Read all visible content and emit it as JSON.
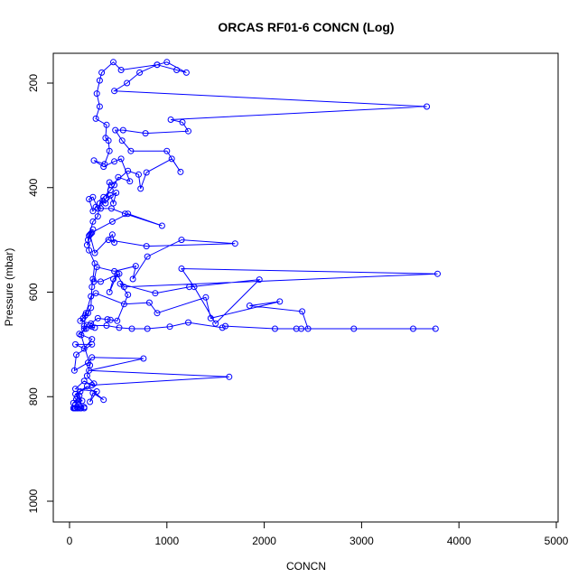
{
  "chart_data": {
    "type": "scatter",
    "title": "ORCAS RF01-6 CONCN (Log)",
    "xlabel": "CONCN",
    "ylabel": "Pressure (mbar)",
    "xlim": [
      0,
      5000
    ],
    "ylim": [
      1030,
      150
    ],
    "y_reversed": true,
    "x_ticks": [
      0,
      1000,
      2000,
      3000,
      4000,
      5000
    ],
    "y_ticks": [
      200,
      400,
      600,
      800,
      1000
    ],
    "x_tick_labels": [
      "0",
      "1000",
      "2000",
      "3000",
      "4000",
      "5000"
    ],
    "y_tick_labels": [
      "200",
      "400",
      "600",
      "800",
      "1000"
    ],
    "grid": false,
    "legend": "none",
    "color": "#0000ff",
    "markers": "open circles connected by lines",
    "series": [
      {
        "points": [
          [
            90,
            822
          ],
          [
            60,
            822
          ],
          [
            50,
            822
          ],
          [
            120,
            822
          ],
          [
            150,
            822
          ],
          [
            80,
            822
          ],
          [
            40,
            822
          ],
          [
            110,
            822
          ],
          [
            60,
            815
          ],
          [
            90,
            810
          ],
          [
            150,
            820
          ],
          [
            70,
            805
          ],
          [
            100,
            798
          ],
          [
            40,
            812
          ],
          [
            130,
            808
          ],
          [
            60,
            795
          ],
          [
            180,
            780
          ],
          [
            350,
            806
          ],
          [
            240,
            793
          ],
          [
            210,
            810
          ],
          [
            280,
            790
          ],
          [
            60,
            785
          ],
          [
            150,
            770
          ],
          [
            230,
            778
          ],
          [
            1640,
            762
          ],
          [
            200,
            750
          ],
          [
            760,
            727
          ],
          [
            230,
            725
          ],
          [
            190,
            735
          ],
          [
            50,
            750
          ],
          [
            70,
            720
          ],
          [
            230,
            700
          ],
          [
            60,
            700
          ],
          [
            150,
            708
          ],
          [
            230,
            690
          ],
          [
            100,
            680
          ],
          [
            170,
            670
          ],
          [
            150,
            665
          ],
          [
            260,
            668
          ],
          [
            230,
            666
          ],
          [
            210,
            664
          ],
          [
            380,
            664
          ],
          [
            510,
            668
          ],
          [
            640,
            670
          ],
          [
            800,
            670
          ],
          [
            1030,
            666
          ],
          [
            1220,
            658
          ],
          [
            1570,
            668
          ],
          [
            1600,
            665
          ],
          [
            2110,
            670
          ],
          [
            2330,
            670
          ],
          [
            2380,
            670
          ],
          [
            2920,
            670
          ],
          [
            3530,
            670
          ],
          [
            3760,
            670
          ],
          [
            2450,
            670
          ],
          [
            2390,
            637
          ],
          [
            1850,
            626
          ],
          [
            2160,
            618
          ],
          [
            1450,
            650
          ],
          [
            1400,
            610
          ],
          [
            900,
            640
          ],
          [
            820,
            620
          ],
          [
            560,
            623
          ],
          [
            270,
            602
          ],
          [
            220,
            608
          ],
          [
            170,
            640
          ],
          [
            140,
            650
          ],
          [
            110,
            655
          ],
          [
            220,
            660
          ],
          [
            290,
            650
          ],
          [
            420,
            653
          ],
          [
            390,
            652
          ],
          [
            490,
            655
          ],
          [
            600,
            605
          ],
          [
            520,
            584
          ],
          [
            880,
            602
          ],
          [
            1230,
            590
          ],
          [
            1950,
            576
          ],
          [
            1500,
            660
          ],
          [
            1280,
            590
          ],
          [
            1150,
            555
          ],
          [
            3780,
            565
          ],
          [
            560,
            590
          ],
          [
            490,
            566
          ],
          [
            410,
            600
          ],
          [
            450,
            575
          ],
          [
            510,
            565
          ],
          [
            320,
            580
          ],
          [
            250,
            580
          ],
          [
            280,
            552
          ],
          [
            460,
            560
          ],
          [
            680,
            550
          ],
          [
            650,
            575
          ],
          [
            800,
            532
          ],
          [
            1150,
            500
          ],
          [
            1700,
            507
          ],
          [
            790,
            512
          ],
          [
            400,
            500
          ],
          [
            460,
            505
          ],
          [
            440,
            490
          ],
          [
            260,
            525
          ],
          [
            210,
            490
          ],
          [
            180,
            510
          ],
          [
            220,
            488
          ],
          [
            240,
            480
          ],
          [
            200,
            492
          ],
          [
            230,
            486
          ],
          [
            440,
            465
          ],
          [
            600,
            450
          ],
          [
            950,
            473
          ],
          [
            570,
            450
          ],
          [
            430,
            440
          ],
          [
            320,
            440
          ],
          [
            270,
            437
          ],
          [
            240,
            445
          ],
          [
            200,
            422
          ],
          [
            240,
            418
          ],
          [
            290,
            440
          ],
          [
            340,
            425
          ],
          [
            370,
            430
          ],
          [
            420,
            415
          ],
          [
            450,
            430
          ],
          [
            480,
            410
          ],
          [
            380,
            420
          ],
          [
            410,
            390
          ],
          [
            430,
            395
          ],
          [
            600,
            368
          ],
          [
            710,
            375
          ],
          [
            730,
            402
          ],
          [
            790,
            371
          ],
          [
            1050,
            345
          ],
          [
            1140,
            370
          ],
          [
            1000,
            330
          ],
          [
            630,
            330
          ],
          [
            540,
            310
          ],
          [
            470,
            290
          ],
          [
            550,
            290
          ],
          [
            780,
            296
          ],
          [
            1220,
            292
          ],
          [
            1160,
            275
          ],
          [
            1040,
            270
          ],
          [
            3670,
            245
          ],
          [
            460,
            215
          ],
          [
            590,
            200
          ],
          [
            720,
            180
          ],
          [
            900,
            165
          ],
          [
            1000,
            160
          ],
          [
            1200,
            180
          ],
          [
            1100,
            175
          ],
          [
            900,
            165
          ],
          [
            530,
            175
          ],
          [
            450,
            160
          ],
          [
            330,
            180
          ],
          [
            310,
            195
          ],
          [
            280,
            220
          ],
          [
            310,
            245
          ],
          [
            270,
            268
          ],
          [
            380,
            280
          ],
          [
            370,
            305
          ],
          [
            400,
            310
          ],
          [
            410,
            330
          ],
          [
            360,
            355
          ],
          [
            250,
            348
          ],
          [
            350,
            360
          ],
          [
            460,
            350
          ],
          [
            530,
            345
          ],
          [
            620,
            388
          ],
          [
            500,
            380
          ],
          [
            460,
            395
          ],
          [
            420,
            405
          ],
          [
            350,
            418
          ],
          [
            310,
            430
          ],
          [
            290,
            455
          ],
          [
            240,
            465
          ],
          [
            190,
            500
          ],
          [
            200,
            520
          ],
          [
            260,
            545
          ],
          [
            240,
            575
          ],
          [
            230,
            590
          ],
          [
            220,
            630
          ],
          [
            190,
            640
          ],
          [
            160,
            645
          ],
          [
            150,
            670
          ],
          [
            120,
            682
          ],
          [
            210,
            740
          ],
          [
            180,
            760
          ],
          [
            250,
            775
          ],
          [
            110,
            790
          ],
          [
            80,
            800
          ],
          [
            60,
            822
          ]
        ]
      }
    ]
  }
}
